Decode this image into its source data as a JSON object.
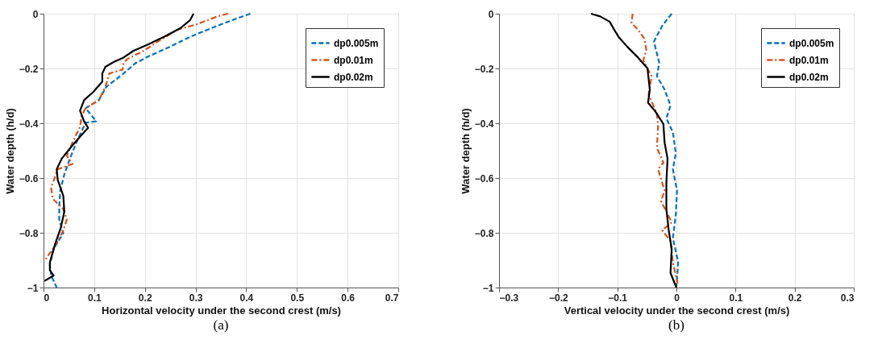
{
  "chart_data": [
    {
      "type": "line",
      "xlabel": "Horizontal velocity under the second crest (m/s)",
      "ylabel": "Water depth (h/d)",
      "annotations": [
        "(a)"
      ],
      "xlim": [
        0,
        0.7
      ],
      "xticks": [
        0,
        0.1,
        0.2,
        0.3,
        0.4,
        0.5,
        0.6,
        0.7
      ],
      "ylim": [
        -1,
        0
      ],
      "yticks": [
        -1,
        -0.8,
        -0.6,
        -0.4,
        -0.2,
        0
      ],
      "grid": true,
      "legend": "top right",
      "series": [
        {
          "name": "dp0.005m",
          "color": "#0072bd",
          "line_style": "dashed",
          "x": [
            0.408,
            0.385,
            0.343,
            0.291,
            0.249,
            0.208,
            0.182,
            0.158,
            0.124,
            0.109,
            0.083,
            0.104,
            0.083,
            0.067,
            0.052,
            0.041,
            0.033,
            0.031,
            0.031,
            0.039,
            0.02,
            0.0125,
            0.015,
            0.026
          ],
          "values": [
            0,
            -0.015,
            -0.044,
            -0.083,
            -0.121,
            -0.155,
            -0.18,
            -0.218,
            -0.267,
            -0.316,
            -0.345,
            -0.393,
            -0.398,
            -0.461,
            -0.529,
            -0.587,
            -0.646,
            -0.704,
            -0.752,
            -0.801,
            -0.859,
            -0.917,
            -0.956,
            -1.0
          ]
        },
        {
          "name": "dp0.01m",
          "color": "#d95319",
          "line_style": "dashdot",
          "x": [
            0.364,
            0.343,
            0.302,
            0.265,
            0.234,
            0.197,
            0.166,
            0.158,
            0.156,
            0.13,
            0.122,
            0.109,
            0.083,
            0.075,
            0.072,
            0.057,
            0.046,
            0.057,
            0.028,
            0.015,
            0.018,
            0.039,
            0.046,
            0.039,
            0.025,
            0.002
          ],
          "values": [
            0,
            -0.01,
            -0.039,
            -0.058,
            -0.092,
            -0.136,
            -0.165,
            -0.18,
            -0.204,
            -0.218,
            -0.267,
            -0.316,
            -0.345,
            -0.374,
            -0.413,
            -0.471,
            -0.519,
            -0.549,
            -0.568,
            -0.636,
            -0.675,
            -0.714,
            -0.752,
            -0.791,
            -0.84,
            -0.903
          ]
        },
        {
          "name": "dp0.02m",
          "color": "#000000",
          "line_style": "solid",
          "x": [
            0.296,
            0.289,
            0.27,
            0.239,
            0.207,
            0.177,
            0.158,
            0.14,
            0.122,
            0.116,
            0.116,
            0.098,
            0.08,
            0.072,
            0.08,
            0.088,
            0.078,
            0.057,
            0.036,
            0.026,
            0.028,
            0.039,
            0.041,
            0.034,
            0.023,
            0.0125,
            0.0125,
            0.02,
            0.002
          ],
          "values": [
            0,
            -0.024,
            -0.053,
            -0.083,
            -0.112,
            -0.136,
            -0.16,
            -0.175,
            -0.194,
            -0.218,
            -0.248,
            -0.286,
            -0.316,
            -0.354,
            -0.393,
            -0.417,
            -0.437,
            -0.481,
            -0.529,
            -0.568,
            -0.607,
            -0.665,
            -0.723,
            -0.782,
            -0.84,
            -0.908,
            -0.937,
            -0.956,
            -0.976
          ]
        }
      ]
    },
    {
      "type": "line",
      "xlabel": "Vertical velocity under the second crest (m/s)",
      "ylabel": "Water depth (h/d)",
      "annotations": [
        "(b)"
      ],
      "xlim": [
        -0.3,
        0.3
      ],
      "xticks": [
        -0.3,
        -0.2,
        -0.1,
        0,
        0.1,
        0.2,
        0.3
      ],
      "ylim": [
        -1,
        0
      ],
      "yticks": [
        -1,
        -0.8,
        -0.6,
        -0.4,
        -0.2,
        0
      ],
      "grid": true,
      "legend": "top right",
      "series": [
        {
          "name": "dp0.005m",
          "color": "#0072bd",
          "line_style": "dashed",
          "x": [
            -0.008,
            -0.024,
            -0.038,
            -0.029,
            -0.033,
            -0.02,
            -0.01,
            -0.017,
            -0.006,
            -0.001,
            -0.006,
            0.001,
            -0.001,
            -0.006,
            0.003,
            0
          ],
          "values": [
            0,
            -0.044,
            -0.102,
            -0.18,
            -0.228,
            -0.277,
            -0.335,
            -0.383,
            -0.432,
            -0.51,
            -0.568,
            -0.646,
            -0.733,
            -0.82,
            -0.908,
            -0.995
          ]
        },
        {
          "name": "dp0.01m",
          "color": "#d95319",
          "line_style": "dashdot",
          "x": [
            -0.074,
            -0.076,
            -0.065,
            -0.054,
            -0.051,
            -0.056,
            -0.042,
            -0.047,
            -0.033,
            -0.031,
            -0.033,
            -0.022,
            -0.031,
            -0.02,
            -0.026,
            -0.008,
            -0.024,
            -0.01,
            -0.006,
            0.002
          ],
          "values": [
            0,
            -0.034,
            -0.058,
            -0.092,
            -0.131,
            -0.17,
            -0.228,
            -0.296,
            -0.364,
            -0.413,
            -0.49,
            -0.544,
            -0.568,
            -0.646,
            -0.684,
            -0.762,
            -0.791,
            -0.83,
            -0.908,
            -0.985
          ]
        },
        {
          "name": "dp0.02m",
          "color": "#000000",
          "line_style": "solid",
          "x": [
            -0.1445,
            -0.129,
            -0.113,
            -0.104,
            -0.097,
            -0.083,
            -0.065,
            -0.049,
            -0.047,
            -0.045,
            -0.048,
            -0.035,
            -0.022,
            -0.02,
            -0.015,
            -0.017,
            -0.017,
            -0.013,
            -0.008,
            -0.01,
            0
          ],
          "values": [
            0,
            -0.01,
            -0.029,
            -0.063,
            -0.087,
            -0.121,
            -0.16,
            -0.199,
            -0.238,
            -0.277,
            -0.325,
            -0.359,
            -0.403,
            -0.471,
            -0.529,
            -0.617,
            -0.714,
            -0.791,
            -0.859,
            -0.947,
            -1
          ]
        }
      ]
    }
  ]
}
